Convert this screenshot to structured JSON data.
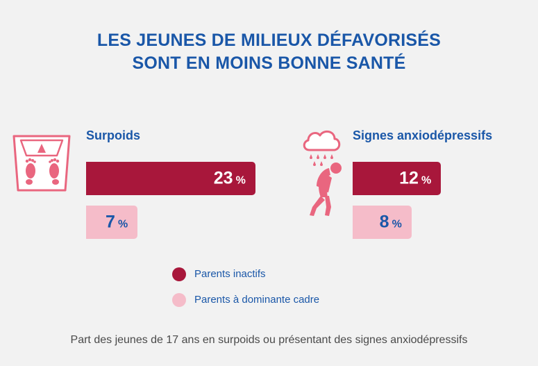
{
  "title": {
    "line1": "LES JEUNES DE MILIEUX DÉFAVORISÉS",
    "line2": "SONT EN MOINS BONNE SANTÉ"
  },
  "colors": {
    "title_blue": "#1a57a8",
    "dark_series": "#a8173b",
    "light_series": "#f5bcc9",
    "icon_pink": "#e9667f"
  },
  "chart_data": [
    {
      "type": "bar",
      "title": "Surpoids",
      "unit": "%",
      "series": [
        {
          "name": "Parents inactifs",
          "values": [
            23
          ],
          "label": "23",
          "unit_label": "%"
        },
        {
          "name": "Parents à dominante cadre",
          "values": [
            7
          ],
          "label": "7",
          "unit_label": "%"
        }
      ]
    },
    {
      "type": "bar",
      "title": "Signes anxiodépressifs",
      "unit": "%",
      "series": [
        {
          "name": "Parents inactifs",
          "values": [
            12
          ],
          "label": "12",
          "unit_label": "%"
        },
        {
          "name": "Parents à dominante cadre",
          "values": [
            8
          ],
          "label": "8",
          "unit_label": "%"
        }
      ]
    }
  ],
  "legend": {
    "items": [
      {
        "label": "Parents inactifs"
      },
      {
        "label": "Parents à dominante cadre"
      }
    ]
  },
  "caption": "Part des jeunes de 17 ans en surpoids ou présentant des signes anxiodépressifs",
  "icons": {
    "left": "weighing-scale-icon",
    "right": "depressed-person-rain-icon"
  }
}
